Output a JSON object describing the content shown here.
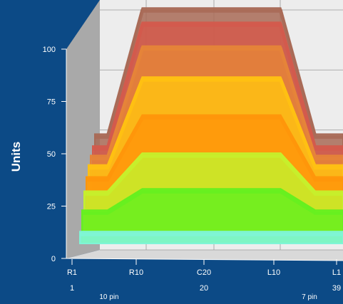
{
  "chart_data": {
    "type": "area",
    "ylabel": "Units",
    "ylim": [
      0,
      100
    ],
    "y_ticks": [
      0,
      25,
      50,
      75,
      100
    ],
    "x_ticks": [
      "R1",
      "R10",
      "C20",
      "L10",
      "L1"
    ],
    "x_numbers": [
      "1",
      "20",
      "39"
    ],
    "x_annotations": [
      "10 pin",
      "7 pin"
    ],
    "x": [
      1,
      5,
      10,
      15,
      20,
      25,
      30,
      35,
      39
    ],
    "series": [
      {
        "values": [
          5,
          5,
          5,
          5,
          5,
          5,
          5,
          5,
          5
        ],
        "color": "#7ff5d6"
      },
      {
        "values": [
          14,
          14,
          23,
          23,
          23,
          23,
          23,
          14,
          14
        ],
        "color": "#66f01f"
      },
      {
        "values": [
          22,
          22,
          38,
          38,
          38,
          38,
          38,
          22,
          22
        ],
        "color": "#c6f02c"
      },
      {
        "values": [
          28,
          28,
          54,
          54,
          54,
          54,
          54,
          28,
          28
        ],
        "color": "#ff960a"
      },
      {
        "values": [
          33,
          33,
          70,
          70,
          70,
          70,
          70,
          33,
          33
        ],
        "color": "#ffc112"
      },
      {
        "values": [
          37,
          37,
          83,
          83,
          83,
          83,
          83,
          37,
          37
        ],
        "color": "#e58438"
      },
      {
        "values": [
          41,
          41,
          93,
          93,
          93,
          93,
          93,
          41,
          41
        ],
        "color": "#d35a4c"
      },
      {
        "values": [
          46,
          46,
          99,
          99,
          99,
          99,
          99,
          46,
          46
        ],
        "color": "#a86a56"
      }
    ],
    "grid": true,
    "legend": "none",
    "style": {
      "background": "#0c4a86",
      "back_wall": "#ededed",
      "side_wall": "#a9a9a9",
      "floor": "#d9d9d9",
      "grid": "#9a9a9a"
    }
  }
}
